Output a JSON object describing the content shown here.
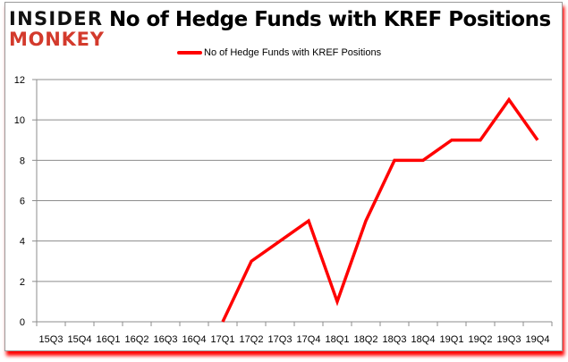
{
  "logo": {
    "line1": "INSIDER",
    "line2": "MONKEY"
  },
  "chart_data": {
    "type": "line",
    "title": "No of Hedge Funds with KREF Positions",
    "categories": [
      "15Q3",
      "15Q4",
      "16Q1",
      "16Q2",
      "16Q3",
      "16Q4",
      "17Q1",
      "17Q2",
      "17Q3",
      "17Q4",
      "18Q1",
      "18Q2",
      "18Q3",
      "18Q4",
      "19Q1",
      "19Q2",
      "19Q3",
      "19Q4"
    ],
    "series": [
      {
        "name": "No of Hedge Funds with KREF Positions",
        "color": "#ff0000",
        "values": [
          null,
          null,
          null,
          null,
          null,
          null,
          0,
          3,
          4,
          5,
          1,
          5,
          8,
          8,
          9,
          9,
          11,
          9
        ]
      }
    ],
    "ylim": [
      0,
      12
    ],
    "yticks": [
      0,
      2,
      4,
      6,
      8,
      10,
      12
    ],
    "grid": true,
    "legend": "top-center"
  }
}
